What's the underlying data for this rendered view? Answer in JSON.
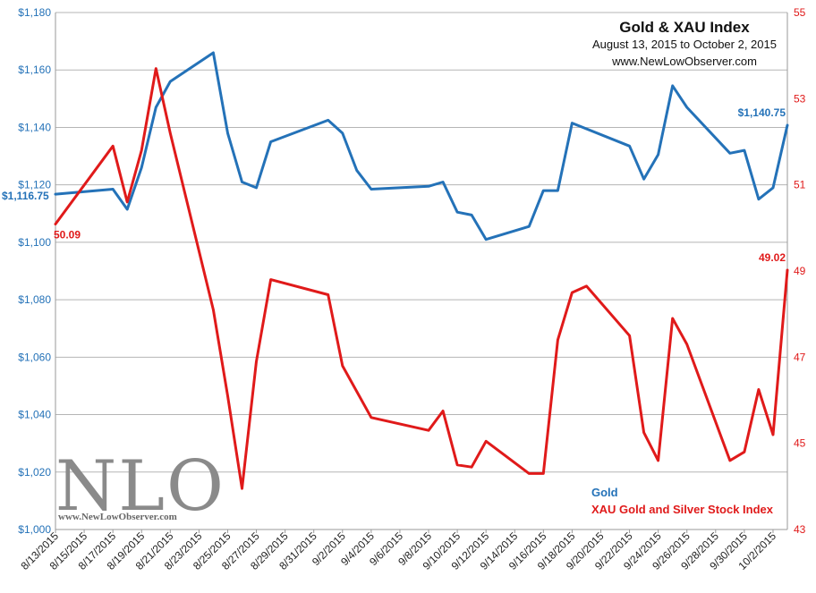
{
  "chart_data": {
    "type": "line",
    "title": "Gold & XAU Index",
    "subtitle": "August 13, 2015  to October 2, 2015",
    "source": "www.NewLowObserver.com",
    "x_tick_labels": [
      "8/13/2015",
      "8/15/2015",
      "8/17/2015",
      "8/19/2015",
      "8/21/2015",
      "8/23/2015",
      "8/25/2015",
      "8/27/2015",
      "8/29/2015",
      "8/31/2015",
      "9/2/2015",
      "9/4/2015",
      "9/6/2015",
      "9/8/2015",
      "9/10/2015",
      "9/12/2015",
      "9/14/2015",
      "9/16/2015",
      "9/18/2015",
      "9/20/2015",
      "9/22/2015",
      "9/24/2015",
      "9/26/2015",
      "9/28/2015",
      "9/30/2015",
      "10/2/2015"
    ],
    "x_range": [
      "2015-08-13",
      "2015-10-02"
    ],
    "y_left": {
      "min": 1000,
      "max": 1180,
      "step": 20,
      "tick_labels": [
        "$1,000",
        "$1,020",
        "$1,040",
        "$1,060",
        "$1,080",
        "$1,100",
        "$1,120",
        "$1,140",
        "$1,160",
        "$1,180"
      ]
    },
    "y_right": {
      "min": 43,
      "max": 55,
      "step": 2,
      "tick_labels": [
        "43",
        "45",
        "47",
        "49",
        "51",
        "53",
        "55"
      ]
    },
    "grid": "horizontal",
    "legend_placement": "bottom-right",
    "series": [
      {
        "name": "Gold",
        "axis": "left",
        "color": "#2472b8",
        "points": [
          {
            "x": "2015-08-13",
            "y": 1116.75
          },
          {
            "x": "2015-08-17",
            "y": 1118.5
          },
          {
            "x": "2015-08-18",
            "y": 1111.5
          },
          {
            "x": "2015-08-19",
            "y": 1126
          },
          {
            "x": "2015-08-20",
            "y": 1147
          },
          {
            "x": "2015-08-21",
            "y": 1156
          },
          {
            "x": "2015-08-24",
            "y": 1166
          },
          {
            "x": "2015-08-25",
            "y": 1138
          },
          {
            "x": "2015-08-26",
            "y": 1121
          },
          {
            "x": "2015-08-27",
            "y": 1119
          },
          {
            "x": "2015-08-28",
            "y": 1135
          },
          {
            "x": "2015-09-01",
            "y": 1142.5
          },
          {
            "x": "2015-09-02",
            "y": 1138
          },
          {
            "x": "2015-09-03",
            "y": 1125
          },
          {
            "x": "2015-09-04",
            "y": 1118.5
          },
          {
            "x": "2015-09-08",
            "y": 1119.5
          },
          {
            "x": "2015-09-09",
            "y": 1121
          },
          {
            "x": "2015-09-10",
            "y": 1110.5
          },
          {
            "x": "2015-09-11",
            "y": 1109.5
          },
          {
            "x": "2015-09-12",
            "y": 1101
          },
          {
            "x": "2015-09-15",
            "y": 1105.5
          },
          {
            "x": "2015-09-16",
            "y": 1118
          },
          {
            "x": "2015-09-17",
            "y": 1118
          },
          {
            "x": "2015-09-18",
            "y": 1141.5
          },
          {
            "x": "2015-09-22",
            "y": 1133.5
          },
          {
            "x": "2015-09-23",
            "y": 1122
          },
          {
            "x": "2015-09-24",
            "y": 1130.5
          },
          {
            "x": "2015-09-25",
            "y": 1154.5
          },
          {
            "x": "2015-09-26",
            "y": 1147
          },
          {
            "x": "2015-09-29",
            "y": 1131
          },
          {
            "x": "2015-09-30",
            "y": 1132
          },
          {
            "x": "2015-10-01",
            "y": 1115
          },
          {
            "x": "2015-10-02",
            "y": 1119
          },
          {
            "x": "2015-10-03",
            "y": 1140.75
          }
        ],
        "start_label": "$1,116.75",
        "end_label": "$1,140.75"
      },
      {
        "name": "XAU Gold and Silver Stock Index",
        "axis": "right",
        "color": "#e01a1a",
        "points": [
          {
            "x": "2015-08-13",
            "y": 50.09
          },
          {
            "x": "2015-08-17",
            "y": 51.9
          },
          {
            "x": "2015-08-18",
            "y": 50.6
          },
          {
            "x": "2015-08-19",
            "y": 51.8
          },
          {
            "x": "2015-08-20",
            "y": 53.7
          },
          {
            "x": "2015-08-21",
            "y": 52.2
          },
          {
            "x": "2015-08-24",
            "y": 48.1
          },
          {
            "x": "2015-08-25",
            "y": 46.1
          },
          {
            "x": "2015-08-26",
            "y": 43.95
          },
          {
            "x": "2015-08-27",
            "y": 46.9
          },
          {
            "x": "2015-08-28",
            "y": 48.8
          },
          {
            "x": "2015-09-01",
            "y": 48.45
          },
          {
            "x": "2015-09-02",
            "y": 46.8
          },
          {
            "x": "2015-09-04",
            "y": 45.6
          },
          {
            "x": "2015-09-08",
            "y": 45.3
          },
          {
            "x": "2015-09-09",
            "y": 45.75
          },
          {
            "x": "2015-09-10",
            "y": 44.5
          },
          {
            "x": "2015-09-11",
            "y": 44.45
          },
          {
            "x": "2015-09-12",
            "y": 45.05
          },
          {
            "x": "2015-09-15",
            "y": 44.3
          },
          {
            "x": "2015-09-16",
            "y": 44.3
          },
          {
            "x": "2015-09-17",
            "y": 47.4
          },
          {
            "x": "2015-09-18",
            "y": 48.5
          },
          {
            "x": "2015-09-19",
            "y": 48.65
          },
          {
            "x": "2015-09-22",
            "y": 47.5
          },
          {
            "x": "2015-09-23",
            "y": 45.25
          },
          {
            "x": "2015-09-24",
            "y": 44.6
          },
          {
            "x": "2015-09-25",
            "y": 47.9
          },
          {
            "x": "2015-09-26",
            "y": 47.3
          },
          {
            "x": "2015-09-29",
            "y": 44.6
          },
          {
            "x": "2015-09-30",
            "y": 44.8
          },
          {
            "x": "2015-10-01",
            "y": 46.25
          },
          {
            "x": "2015-10-02",
            "y": 45.2
          },
          {
            "x": "2015-10-03",
            "y": 49.02
          }
        ],
        "start_label": "50.09",
        "end_label": "49.02"
      }
    ]
  },
  "logo": {
    "main": "NLO",
    "sub": "www.NewLowObserver.com"
  }
}
